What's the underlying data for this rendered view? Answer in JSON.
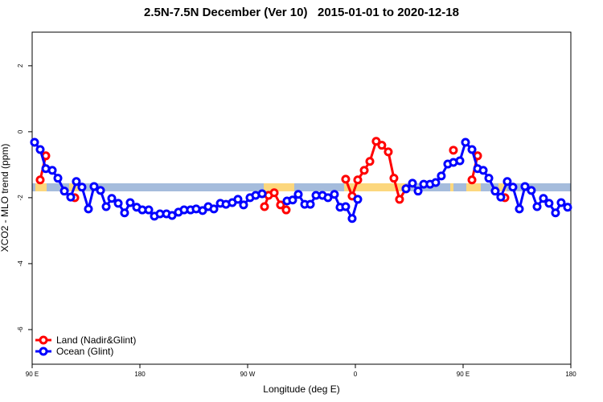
{
  "chart_data": {
    "type": "line",
    "title": "2.5N-7.5N December (Ver 10)   2015-01-01 to 2020-12-18",
    "x_label": "Longitude (deg E)",
    "y_label": "XCO2 - MLO trend (ppm)",
    "xlim": [
      90,
      540
    ],
    "ylim": [
      -7.05,
      3.02
    ],
    "xticks": [
      {
        "value": 90,
        "label": "90 E"
      },
      180,
      {
        "value": 270,
        "label": "90 W"
      },
      {
        "value": 360,
        "label": "0"
      },
      {
        "value": 450,
        "label": "90 E"
      },
      {
        "value": 540,
        "label": "180"
      }
    ],
    "yticks": [
      -6,
      -4,
      -2,
      0,
      2
    ],
    "legend": "bottom-left",
    "series": [
      {
        "name": "Land (Nadir&Glint)",
        "color": "#ff0000",
        "x": [
          96.7,
          101.4,
          110,
          125.6,
          200,
          284.1,
          287.5,
          292.2,
          297.5,
          302.2,
          330,
          351.9,
          357.3,
          362.0,
          367.4,
          372.1,
          377.4,
          382.1,
          387.5,
          392.2,
          396.9,
          402.3,
          420,
          441.9,
          450,
          457.4,
          462.1,
          470,
          484.9
        ],
        "values": [
          -1.46,
          -0.73,
          null,
          -2.0,
          null,
          -2.27,
          -1.93,
          -1.85,
          -2.22,
          -2.37,
          null,
          -1.44,
          -1.95,
          -1.46,
          -1.17,
          -0.9,
          -0.29,
          -0.41,
          -0.61,
          -1.41,
          -2.05,
          -1.73,
          null,
          -0.56,
          null,
          -1.46,
          -0.73,
          null,
          -2.0
        ]
      },
      {
        "name": "Ocean (Glint)",
        "color": "#0000ff",
        "x": [
          92.0,
          96.7,
          101.4,
          106.8,
          111.5,
          116.9,
          122.2,
          126.9,
          131.6,
          137.0,
          141.7,
          147.1,
          151.8,
          156.5,
          161.9,
          167.2,
          171.9,
          177.3,
          182.0,
          187.4,
          192.1,
          196.8,
          202.2,
          206.9,
          212.2,
          216.9,
          222.3,
          227.0,
          232.4,
          237.1,
          241.8,
          247.2,
          251.9,
          257.2,
          261.9,
          266.6,
          272.0,
          276.7,
          282.1,
          290,
          302.9,
          307.6,
          312.3,
          317.7,
          322.4,
          327.1,
          332.5,
          337.1,
          342.5,
          347.2,
          351.9,
          357.3,
          362.0,
          380,
          402.3,
          407.7,
          412.4,
          417.1,
          422.4,
          427.1,
          431.8,
          437.2,
          441.9,
          447.3,
          452.0,
          457.4,
          462.1,
          466.8,
          471.5,
          476.8,
          481.5,
          486.9,
          491.6,
          497.0,
          501.7,
          507.0,
          511.8,
          517.1,
          521.8,
          527.2,
          531.9,
          537.3
        ],
        "values": [
          -0.32,
          -0.54,
          -1.12,
          -1.17,
          -1.41,
          -1.8,
          -1.98,
          -1.51,
          -1.68,
          -2.34,
          -1.66,
          -1.78,
          -2.27,
          -2.02,
          -2.17,
          -2.46,
          -2.15,
          -2.29,
          -2.37,
          -2.37,
          -2.56,
          -2.49,
          -2.49,
          -2.54,
          -2.44,
          -2.37,
          -2.37,
          -2.34,
          -2.39,
          -2.27,
          -2.34,
          -2.17,
          -2.2,
          -2.15,
          -2.05,
          -2.22,
          -2.0,
          -1.93,
          -1.88,
          null,
          -2.1,
          -2.07,
          -1.9,
          -2.2,
          -2.2,
          -1.93,
          -1.93,
          -2.0,
          -1.9,
          -2.29,
          -2.27,
          -2.63,
          -2.05,
          null,
          -1.73,
          -1.56,
          -1.8,
          -1.59,
          -1.59,
          -1.54,
          -1.34,
          -0.98,
          -0.93,
          -0.88,
          -0.32,
          -0.54,
          -1.12,
          -1.17,
          -1.41,
          -1.8,
          -1.98,
          -1.51,
          -1.68,
          -2.34,
          -1.66,
          -1.78,
          -2.27,
          -2.02,
          -2.17,
          -2.46,
          -2.15,
          -2.29
        ]
      }
    ]
  }
}
